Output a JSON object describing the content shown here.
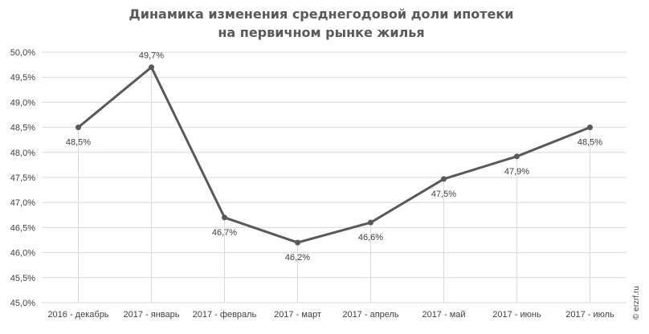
{
  "chart_data": {
    "type": "line",
    "title_lines": [
      "Динамика изменения среднегодовой доли ипотеки",
      "на первичном рынке жилья"
    ],
    "categories": [
      "2016 - декабрь",
      "2017 - январь",
      "2017 - февраль",
      "2017 - март",
      "2017 - апрель",
      "2017 - май",
      "2017 - июнь",
      "2017 - июль"
    ],
    "values": [
      48.5,
      49.7,
      46.7,
      46.2,
      46.6,
      47.47,
      47.92,
      48.5
    ],
    "data_labels": [
      "48,5%",
      "49,7%",
      "46,7%",
      "46,2%",
      "46,6%",
      "47,5%",
      "47,9%",
      "48,5%"
    ],
    "label_position": [
      "below",
      "above",
      "below",
      "below",
      "below",
      "below",
      "below",
      "below"
    ],
    "ylim": [
      45.0,
      50.0
    ],
    "y_ticks": [
      45.0,
      45.5,
      46.0,
      46.5,
      47.0,
      47.5,
      48.0,
      48.5,
      49.0,
      49.5,
      50.0
    ],
    "y_tick_labels": [
      "45,0%",
      "45,5%",
      "46,0%",
      "46,5%",
      "47,0%",
      "47,5%",
      "48,0%",
      "48,5%",
      "49,0%",
      "49,5%",
      "50,0%"
    ],
    "grid": true,
    "legend": "none",
    "line_color": "#595959",
    "grid_color": "#d9d9d9",
    "drop_line_color": "#d9d9d9",
    "title_color": "#595959"
  },
  "watermark": "© erzrf.ru"
}
